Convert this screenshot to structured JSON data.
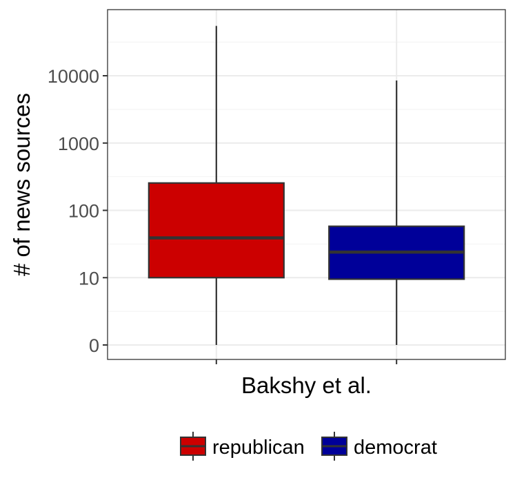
{
  "chart_data": {
    "type": "box",
    "title": "",
    "xlabel": "Bakshy et al.",
    "ylabel": "# of news sources",
    "y_scale": "log (0 shown at bottom)",
    "y_ticks": [
      {
        "value": 0,
        "label": "0"
      },
      {
        "value": 10,
        "label": "10"
      },
      {
        "value": 100,
        "label": "100"
      },
      {
        "value": 1000,
        "label": "1000"
      },
      {
        "value": 10000,
        "label": "10000"
      }
    ],
    "grid": true,
    "legend_position": "bottom",
    "series": [
      {
        "name": "republican",
        "color": "#cc0000",
        "whisker_low": 0,
        "q1": 10,
        "median": 39,
        "q3": 255,
        "whisker_high": 55000
      },
      {
        "name": "democrat",
        "color": "#000099",
        "whisker_low": 0,
        "q1": 9.5,
        "median": 24,
        "q3": 58,
        "whisker_high": 8500
      }
    ]
  }
}
